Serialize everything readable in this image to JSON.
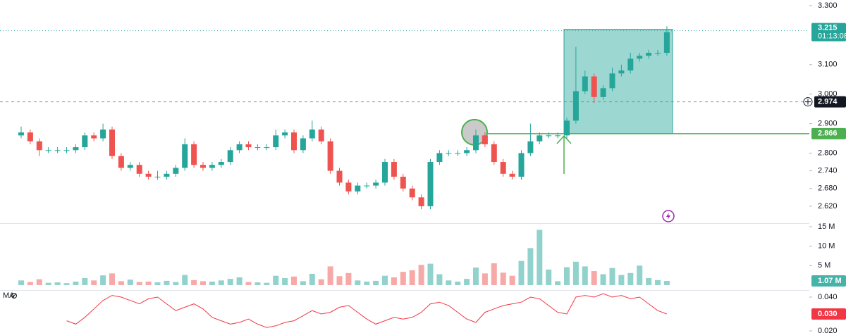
{
  "chart_data": [
    {
      "type": "candlestick",
      "open": [
        2.86,
        2.87,
        2.84,
        2.81,
        2.81,
        2.81,
        2.81,
        2.82,
        2.86,
        2.85,
        2.88,
        2.79,
        2.75,
        2.76,
        2.73,
        2.72,
        2.72,
        2.73,
        2.75,
        2.83,
        2.76,
        2.75,
        2.76,
        2.77,
        2.81,
        2.83,
        2.82,
        2.82,
        2.82,
        2.86,
        2.87,
        2.81,
        2.85,
        2.88,
        2.84,
        2.74,
        2.7,
        2.67,
        2.69,
        2.69,
        2.7,
        2.77,
        2.72,
        2.68,
        2.65,
        2.62,
        2.77,
        2.8,
        2.8,
        2.8,
        2.81,
        2.86,
        2.83,
        2.77,
        2.73,
        2.72,
        2.8,
        2.84,
        2.86,
        2.86,
        2.86,
        2.91,
        3.01,
        3.06,
        2.99,
        3.02,
        3.07,
        3.08,
        3.12,
        3.13,
        3.14,
        3.14
      ],
      "high": [
        2.89,
        2.88,
        2.85,
        2.82,
        2.82,
        2.82,
        2.83,
        2.87,
        2.87,
        2.9,
        2.89,
        2.8,
        2.77,
        2.77,
        2.74,
        2.74,
        2.74,
        2.76,
        2.85,
        2.84,
        2.77,
        2.77,
        2.78,
        2.82,
        2.84,
        2.84,
        2.83,
        2.83,
        2.88,
        2.88,
        2.88,
        2.86,
        2.91,
        2.89,
        2.85,
        2.75,
        2.71,
        2.7,
        2.7,
        2.71,
        2.78,
        2.78,
        2.73,
        2.69,
        2.66,
        2.78,
        2.81,
        2.81,
        2.81,
        2.82,
        2.88,
        2.87,
        2.84,
        2.78,
        2.74,
        2.81,
        2.9,
        2.87,
        2.87,
        2.87,
        2.92,
        3.16,
        3.08,
        3.07,
        3.03,
        3.09,
        3.1,
        3.14,
        3.14,
        3.15,
        3.15,
        3.23
      ],
      "low": [
        2.85,
        2.83,
        2.79,
        2.8,
        2.8,
        2.8,
        2.8,
        2.81,
        2.84,
        2.84,
        2.78,
        2.74,
        2.74,
        2.72,
        2.71,
        2.71,
        2.71,
        2.72,
        2.74,
        2.75,
        2.74,
        2.74,
        2.75,
        2.76,
        2.8,
        2.81,
        2.81,
        2.81,
        2.81,
        2.85,
        2.8,
        2.8,
        2.84,
        2.83,
        2.73,
        2.69,
        2.66,
        2.66,
        2.68,
        2.68,
        2.69,
        2.71,
        2.67,
        2.64,
        2.61,
        2.61,
        2.76,
        2.79,
        2.79,
        2.79,
        2.8,
        2.82,
        2.76,
        2.72,
        2.71,
        2.71,
        2.79,
        2.83,
        2.85,
        2.85,
        2.85,
        2.9,
        3.0,
        2.97,
        2.98,
        3.01,
        3.06,
        3.07,
        3.11,
        3.12,
        3.13,
        3.13
      ],
      "close": [
        2.87,
        2.84,
        2.81,
        2.81,
        2.81,
        2.81,
        2.82,
        2.86,
        2.85,
        2.88,
        2.79,
        2.75,
        2.76,
        2.73,
        2.72,
        2.72,
        2.73,
        2.75,
        2.83,
        2.76,
        2.75,
        2.76,
        2.77,
        2.81,
        2.83,
        2.82,
        2.82,
        2.82,
        2.86,
        2.87,
        2.81,
        2.85,
        2.88,
        2.84,
        2.74,
        2.7,
        2.67,
        2.69,
        2.69,
        2.7,
        2.77,
        2.72,
        2.68,
        2.65,
        2.62,
        2.77,
        2.8,
        2.8,
        2.8,
        2.81,
        2.86,
        2.83,
        2.77,
        2.73,
        2.72,
        2.8,
        2.84,
        2.86,
        2.86,
        2.86,
        2.91,
        3.01,
        3.06,
        2.99,
        3.02,
        3.07,
        3.08,
        3.12,
        3.13,
        3.14,
        3.14,
        3.21
      ],
      "up_color": "#26a69a",
      "down_color": "#ef5350",
      "ylim": [
        2.5625,
        3.319
      ],
      "yticks": [
        {
          "value": 3.3,
          "label": "3.300"
        },
        {
          "value": 3.1,
          "label": "3.100"
        },
        {
          "value": 3.0,
          "label": "3.000"
        },
        {
          "value": 2.9,
          "label": "2.900"
        },
        {
          "value": 2.8,
          "label": "2.800"
        },
        {
          "value": 2.74,
          "label": "2.740"
        },
        {
          "value": 2.68,
          "label": "2.680"
        },
        {
          "value": 2.62,
          "label": "2.620"
        }
      ],
      "last_price": {
        "value": 3.215,
        "label": "3.215",
        "countdown": "01:13:08",
        "color": "#26a69a"
      },
      "crosshair_price": {
        "value": 2.974,
        "label": "2.974"
      },
      "level": {
        "value": 2.866,
        "label": "2.866",
        "color": "#4caf50"
      }
    },
    {
      "type": "bar",
      "values": [
        1.2,
        0.8,
        1.5,
        0.6,
        0.7,
        0.5,
        0.9,
        1.8,
        1.2,
        2.5,
        3.0,
        1.0,
        1.4,
        0.8,
        0.9,
        0.7,
        1.1,
        0.8,
        2.6,
        1.3,
        1.0,
        0.9,
        1.2,
        1.6,
        2.0,
        0.8,
        0.7,
        0.6,
        2.4,
        1.8,
        2.2,
        1.0,
        2.9,
        1.5,
        4.8,
        2.3,
        3.1,
        1.2,
        0.9,
        1.1,
        2.4,
        2.0,
        3.4,
        3.8,
        5.2,
        5.5,
        2.8,
        1.2,
        0.9,
        1.6,
        4.5,
        3.0,
        5.6,
        3.2,
        2.4,
        6.2,
        9.5,
        14.2,
        4.0,
        1.0,
        4.6,
        6.0,
        4.8,
        3.6,
        2.8,
        4.4,
        2.6,
        3.1,
        5.0,
        1.8,
        1.3,
        1.07
      ],
      "value_labels": {
        "71": "1.07 M"
      },
      "ylim": [
        -1.27,
        15.72
      ],
      "yticks": [
        {
          "value": 15,
          "label": "15 M"
        },
        {
          "value": 10,
          "label": "10 M"
        },
        {
          "value": 5,
          "label": "5 M"
        }
      ]
    },
    {
      "type": "line",
      "name": "MA",
      "color": "#f23645",
      "values": [
        null,
        null,
        null,
        null,
        null,
        0.026,
        0.024,
        0.028,
        0.033,
        0.038,
        0.041,
        0.04,
        0.038,
        0.036,
        0.039,
        0.04,
        0.036,
        0.032,
        0.034,
        0.036,
        0.033,
        0.028,
        0.026,
        0.024,
        0.025,
        0.027,
        0.024,
        0.022,
        0.023,
        0.025,
        0.026,
        0.029,
        0.032,
        0.03,
        0.031,
        0.034,
        0.035,
        0.031,
        0.027,
        0.024,
        0.026,
        0.028,
        0.027,
        0.028,
        0.031,
        0.036,
        0.037,
        0.035,
        0.031,
        0.027,
        0.025,
        0.031,
        0.033,
        0.035,
        0.036,
        0.037,
        0.04,
        0.039,
        0.035,
        0.031,
        0.03,
        0.04,
        0.041,
        0.04,
        0.042,
        0.04,
        0.041,
        0.039,
        0.04,
        0.036,
        0.032,
        0.03
      ],
      "value_labels": {
        "71": "0.030"
      },
      "ylim": [
        0.01875,
        0.04417
      ],
      "yticks": [
        {
          "value": 0.04,
          "label": "0.040"
        },
        {
          "value": 0.02,
          "label": "0.020"
        }
      ]
    }
  ]
}
